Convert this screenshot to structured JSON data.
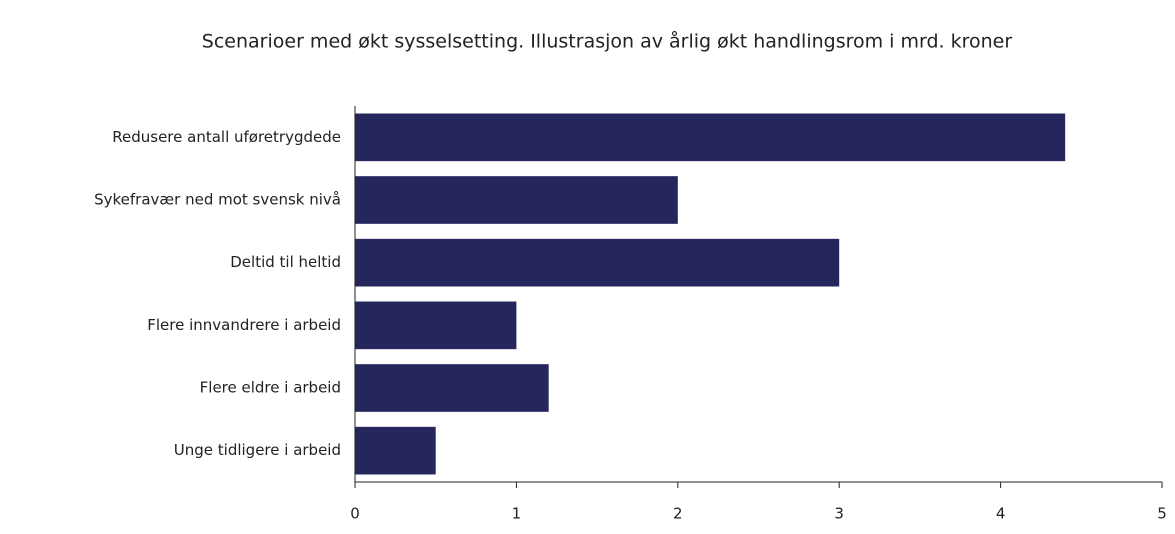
{
  "chart_data": {
    "type": "bar",
    "orientation": "horizontal",
    "title": "Scenarioer med økt sysselsetting. Illustrasjon av årlig økt handlingsrom i mrd. kroner",
    "categories": [
      "Redusere antall uføretrygdede",
      "Sykefravær ned mot svensk nivå",
      "Deltid til heltid",
      "Flere innvandrere i arbeid",
      "Flere eldre i arbeid",
      "Unge tidligere i arbeid"
    ],
    "values": [
      4.4,
      2.0,
      3.0,
      1.0,
      1.2,
      0.5
    ],
    "color": "#25265c",
    "xlim": [
      0,
      5
    ],
    "xticks": [
      0,
      1,
      2,
      3,
      4,
      5
    ],
    "grid": false
  }
}
